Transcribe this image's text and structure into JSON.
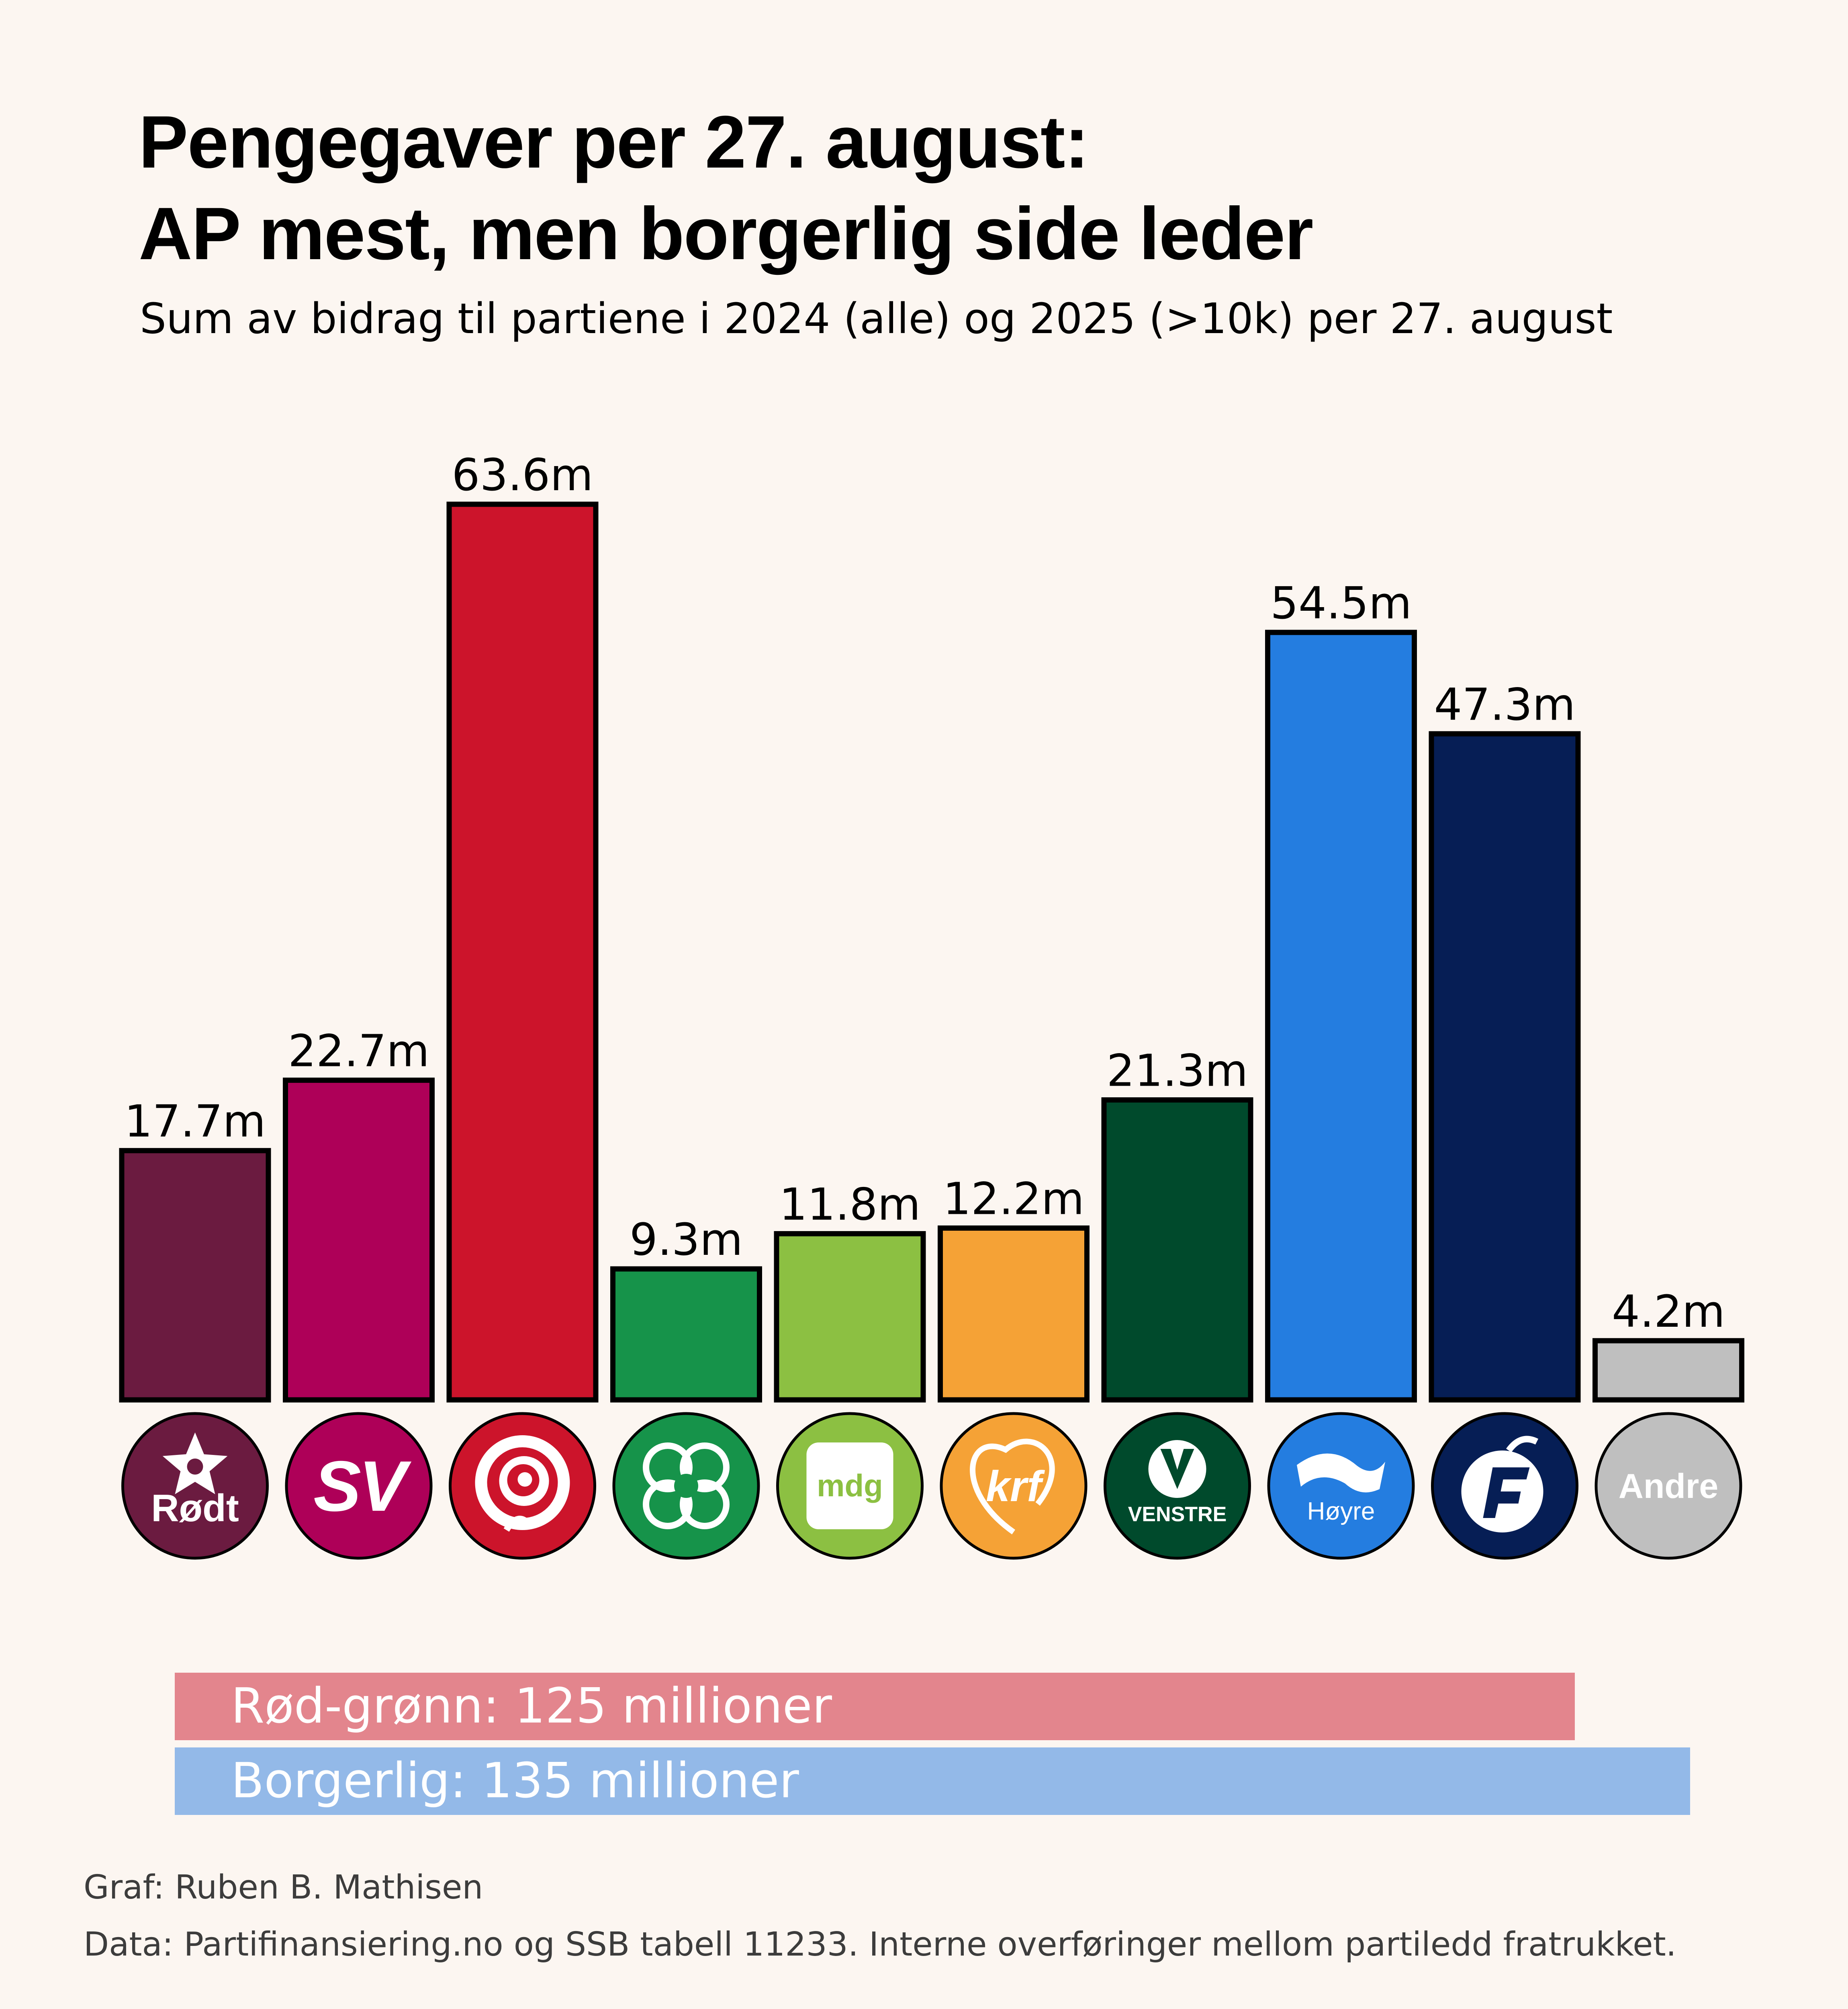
{
  "chart_data": {
    "type": "bar",
    "title": [
      "Pengegaver per 27. august:",
      "AP mest, men borgerlig side leder"
    ],
    "subtitle": "Sum av bidrag til partiene i 2024 (alle) og 2025 (>10k) per 27. august",
    "xlabel": "",
    "ylabel": "",
    "unit": "millioner NOK",
    "grid": false,
    "ylim": [
      0,
      63.6
    ],
    "categories": [
      "Rødt",
      "SV",
      "Ap",
      "Sp",
      "MDG",
      "KrF",
      "Venstre",
      "Høyre",
      "FrP",
      "Andre"
    ],
    "values": [
      17.7,
      22.7,
      63.6,
      9.3,
      11.8,
      12.2,
      21.3,
      54.5,
      47.3,
      4.2
    ],
    "value_labels": [
      "17.7m",
      "22.7m",
      "63.6m",
      "9.3m",
      "11.8m",
      "12.2m",
      "21.3m",
      "54.5m",
      "47.3m",
      "4.2m"
    ],
    "colors": [
      "#6b1b40",
      "#ae0058",
      "#cc142b",
      "#16934a",
      "#8cc042",
      "#f5a236",
      "#004a2c",
      "#247de0",
      "#061e55",
      "#bfbfbf"
    ],
    "logos": [
      {
        "icon": "star-icon",
        "text": "Rødt",
        "bg": "#6b1b40"
      },
      {
        "icon": "sv-icon",
        "text": "SV",
        "bg": "#ae0058"
      },
      {
        "icon": "rose-icon",
        "text": "",
        "bg": "#cc142b"
      },
      {
        "icon": "clover-icon",
        "text": "",
        "bg": "#16934a"
      },
      {
        "icon": "mdg-icon",
        "text": "mdg",
        "bg": "#8cc042"
      },
      {
        "icon": "krf-icon",
        "text": "krf",
        "bg": "#f5a236"
      },
      {
        "icon": "venstre-icon",
        "text": "VENSTRE",
        "bg": "#004a2c"
      },
      {
        "icon": "hoyre-icon",
        "text": "Høyre",
        "bg": "#247de0"
      },
      {
        "icon": "frp-icon",
        "text": "",
        "bg": "#061e55"
      },
      {
        "icon": "andre-icon",
        "text": "Andre",
        "bg": "#bfbfbf"
      }
    ],
    "blocs": [
      {
        "name": "Rød-grønn",
        "value": 125,
        "label": "Rød-grønn: 125 millioner",
        "color": "#e3858d"
      },
      {
        "name": "Borgerlig",
        "value": 135,
        "label": "Borgerlig: 135 millioner",
        "color": "#93b9e8"
      }
    ]
  },
  "credits": {
    "graph": "Graf: Ruben B. Mathisen",
    "data": "Data: Partifinansiering.no og SSB tabell 11233. Interne overføringer mellom partiledd fratrukket."
  }
}
